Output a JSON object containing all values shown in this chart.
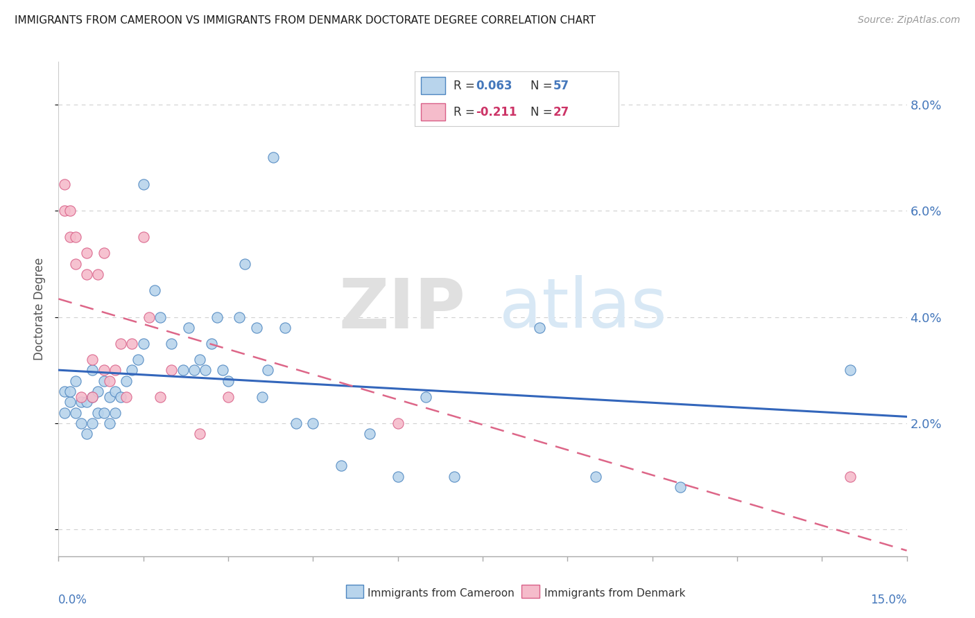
{
  "title": "IMMIGRANTS FROM CAMEROON VS IMMIGRANTS FROM DENMARK DOCTORATE DEGREE CORRELATION CHART",
  "source": "Source: ZipAtlas.com",
  "ylabel": "Doctorate Degree",
  "yaxis_ticks": [
    0.0,
    0.02,
    0.04,
    0.06,
    0.08
  ],
  "yaxis_labels": [
    "",
    "2.0%",
    "4.0%",
    "6.0%",
    "8.0%"
  ],
  "xaxis_range": [
    0.0,
    0.15
  ],
  "yaxis_range": [
    -0.005,
    0.088
  ],
  "legend_r1_label": "R = ",
  "legend_r1_val": "0.063",
  "legend_n1_label": "N = ",
  "legend_n1_val": "57",
  "legend_r2_label": "R = ",
  "legend_r2_val": "-0.211",
  "legend_n2_label": "N = ",
  "legend_n2_val": "27",
  "color_blue_fill": "#b8d4ec",
  "color_blue_edge": "#4d86c0",
  "color_pink_fill": "#f5bccb",
  "color_pink_edge": "#d96088",
  "color_blue_text": "#4477bb",
  "color_pink_text": "#cc3366",
  "color_trendline_blue": "#3366bb",
  "color_trendline_pink": "#dd6688",
  "background_color": "#ffffff",
  "watermark_zip": "ZIP",
  "watermark_atlas": "atlas",
  "grid_color": "#d0d0d0",
  "bottom_label1": "Immigrants from Cameroon",
  "bottom_label2": "Immigrants from Denmark",
  "scatter_blue_x": [
    0.001,
    0.001,
    0.002,
    0.002,
    0.003,
    0.003,
    0.004,
    0.004,
    0.005,
    0.005,
    0.006,
    0.006,
    0.006,
    0.007,
    0.007,
    0.008,
    0.008,
    0.009,
    0.009,
    0.01,
    0.01,
    0.011,
    0.012,
    0.013,
    0.014,
    0.015,
    0.015,
    0.017,
    0.018,
    0.02,
    0.022,
    0.023,
    0.024,
    0.025,
    0.026,
    0.027,
    0.028,
    0.029,
    0.03,
    0.032,
    0.033,
    0.035,
    0.036,
    0.037,
    0.038,
    0.04,
    0.042,
    0.045,
    0.05,
    0.055,
    0.06,
    0.065,
    0.07,
    0.085,
    0.095,
    0.11,
    0.14
  ],
  "scatter_blue_y": [
    0.022,
    0.026,
    0.024,
    0.026,
    0.022,
    0.028,
    0.02,
    0.024,
    0.018,
    0.024,
    0.02,
    0.025,
    0.03,
    0.022,
    0.026,
    0.022,
    0.028,
    0.02,
    0.025,
    0.022,
    0.026,
    0.025,
    0.028,
    0.03,
    0.032,
    0.035,
    0.065,
    0.045,
    0.04,
    0.035,
    0.03,
    0.038,
    0.03,
    0.032,
    0.03,
    0.035,
    0.04,
    0.03,
    0.028,
    0.04,
    0.05,
    0.038,
    0.025,
    0.03,
    0.07,
    0.038,
    0.02,
    0.02,
    0.012,
    0.018,
    0.01,
    0.025,
    0.01,
    0.038,
    0.01,
    0.008,
    0.03
  ],
  "scatter_pink_x": [
    0.001,
    0.001,
    0.002,
    0.002,
    0.003,
    0.003,
    0.004,
    0.005,
    0.005,
    0.006,
    0.006,
    0.007,
    0.008,
    0.008,
    0.009,
    0.01,
    0.011,
    0.012,
    0.013,
    0.015,
    0.016,
    0.018,
    0.02,
    0.025,
    0.03,
    0.06,
    0.14
  ],
  "scatter_pink_y": [
    0.06,
    0.065,
    0.055,
    0.06,
    0.05,
    0.055,
    0.025,
    0.048,
    0.052,
    0.025,
    0.032,
    0.048,
    0.03,
    0.052,
    0.028,
    0.03,
    0.035,
    0.025,
    0.035,
    0.055,
    0.04,
    0.025,
    0.03,
    0.018,
    0.025,
    0.02,
    0.01
  ]
}
